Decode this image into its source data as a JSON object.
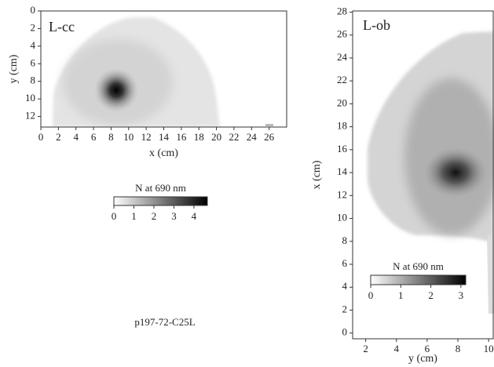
{
  "chart_data": [
    {
      "type": "heatmap",
      "title": "L-cc",
      "xlabel": "x (cm)",
      "ylabel": "y (cm)",
      "xlim": [
        0,
        28
      ],
      "ylim": [
        0,
        13.2
      ],
      "y_reversed": true,
      "xticks": [
        0,
        2,
        4,
        6,
        8,
        10,
        12,
        14,
        16,
        18,
        20,
        22,
        24,
        26
      ],
      "yticks": [
        0,
        2,
        4,
        6,
        8,
        10,
        12
      ],
      "colorbar": {
        "label": "N at 690 nm",
        "lim": [
          0,
          4.67
        ],
        "ticks": [
          0,
          1,
          2,
          3,
          4
        ],
        "colors": [
          "#ffffff",
          "#000000"
        ]
      }
    },
    {
      "type": "heatmap",
      "title": "L-ob",
      "xlabel": "y (cm)",
      "ylabel": "x (cm)",
      "xlim": [
        1.15,
        10.3
      ],
      "ylim": [
        -0.5,
        28.1
      ],
      "y_reversed": false,
      "xticks": [
        2,
        4,
        6,
        8,
        10
      ],
      "yticks": [
        0,
        2,
        4,
        6,
        8,
        10,
        12,
        14,
        16,
        18,
        20,
        22,
        24,
        26,
        28
      ],
      "colorbar": {
        "label": "N at 690 nm",
        "lim": [
          0,
          3.16
        ],
        "ticks": [
          0,
          1,
          2,
          3
        ],
        "colors": [
          "#ffffff",
          "#000000"
        ]
      }
    }
  ],
  "caption": "p197-72-C25L"
}
